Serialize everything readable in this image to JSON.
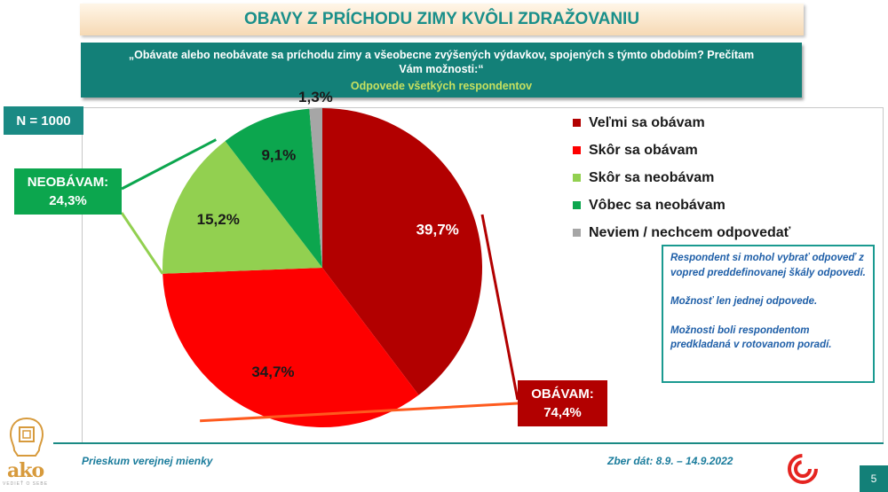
{
  "title": "OBAVY Z PRÍCHODU ZIMY KVÔLI ZDRAŽOVANIU",
  "question": {
    "text": "„Obávate alebo neobávate sa príchodu zimy a všeobecne zvýšených výdavkov, spojených s týmto obdobím? Prečítam Vám možnosti:“",
    "subtitle": "Odpovede všetkých respondentov"
  },
  "sample": "N = 1000",
  "chart_data": {
    "type": "pie",
    "title": "OBAVY Z PRÍCHODU ZIMY KVÔLI ZDRAŽOVANIU",
    "slices": [
      {
        "label": "Veľmi sa obávam",
        "value": 39.7,
        "display": "39,7%",
        "color": "#b20000"
      },
      {
        "label": "Skôr sa obávam",
        "value": 34.7,
        "display": "34,7%",
        "color": "#fe0000"
      },
      {
        "label": "Skôr sa neobávam",
        "value": 15.2,
        "display": "15,2%",
        "color": "#92d050"
      },
      {
        "label": "Vôbec sa neobávam",
        "value": 9.1,
        "display": "9,1%",
        "color": "#0ca64e"
      },
      {
        "label": "Neviem / nechcem odpovedať",
        "value": 1.3,
        "display": "1,3%",
        "color": "#a6a6a6"
      }
    ],
    "groups": [
      {
        "name": "OBÁVAM:",
        "value": 74.4,
        "display": "74,4%",
        "color": "#b20000"
      },
      {
        "name": "NEOBÁVAM:",
        "value": 24.3,
        "display": "24,3%",
        "color": "#0ca64e"
      }
    ],
    "legend_position": "right"
  },
  "note": {
    "p1": "Respondent si mohol vybrať odpoveď z vopred preddefinovanej škály odpovedí.",
    "p2": "Možnosť len jednej odpovede.",
    "p3": "Možnosti boli respondentom predkladaná v rotovanom poradí."
  },
  "footer": {
    "left": "Prieskum verejnej mienky",
    "right": "Zber dát: 8.9. – 14.9.2022",
    "page": "5"
  },
  "logo": {
    "name": "ako",
    "tagline": "VEDIEŤ O SEBE"
  }
}
